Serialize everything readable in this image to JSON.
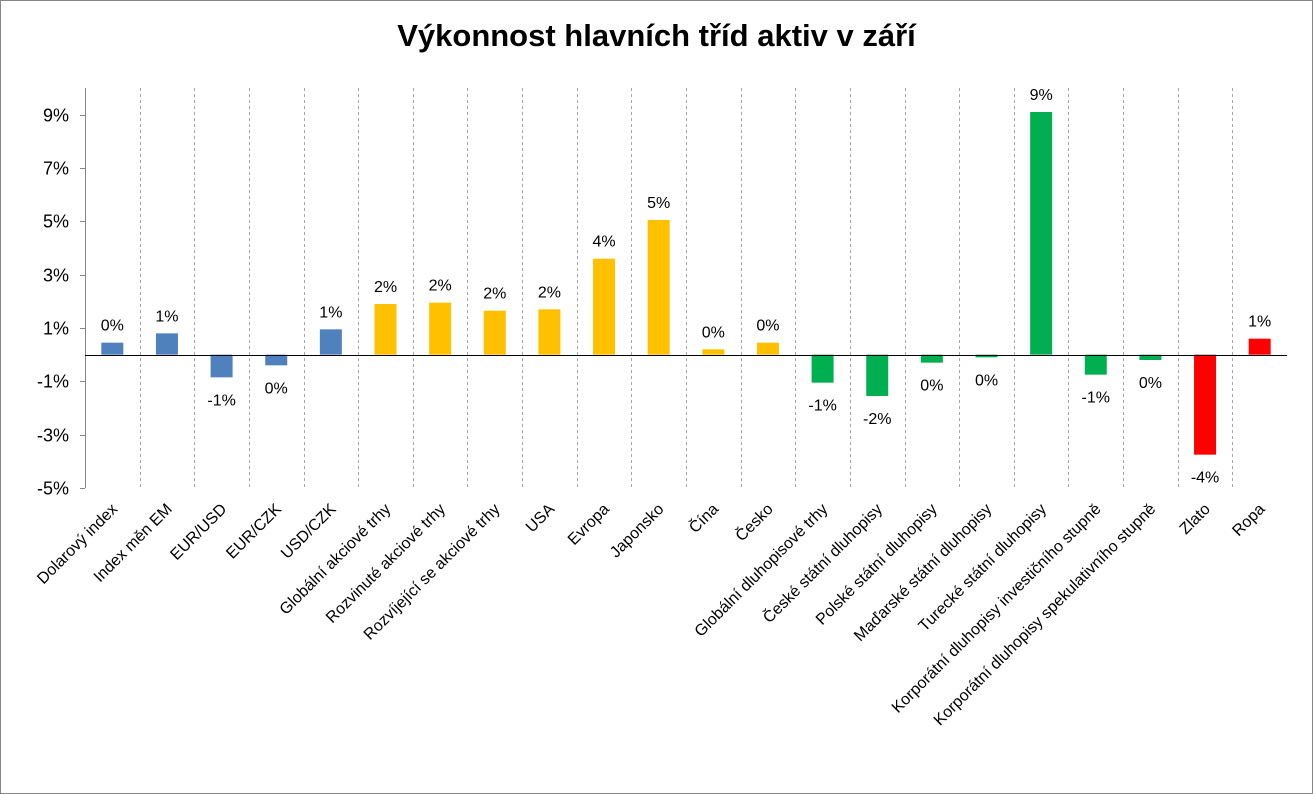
{
  "chart_data": {
    "type": "bar",
    "title": "Výkonnost hlavních tříd aktiv v září",
    "xlabel": "",
    "ylabel": "",
    "ylim": [
      -5,
      10
    ],
    "y_ticks": [
      "-5%",
      "-3%",
      "-1%",
      "1%",
      "3%",
      "5%",
      "7%",
      "9%"
    ],
    "y_tick_values": [
      -5,
      -3,
      -1,
      1,
      3,
      5,
      7,
      9
    ],
    "grid": "vertical dashed between categories",
    "categories": [
      "Dolarový index",
      "Index měn EM",
      "EUR/USD",
      "EUR/CZK",
      "USD/CZK",
      "Globální akciové trhy",
      "Rozvinuté akciové trhy",
      "Rozvíjející se akciové trhy",
      "USA",
      "Evropa",
      "Japonsko",
      "Čína",
      "Česko",
      "Globální dluhopisové trhy",
      "České státní dluhopisy",
      "Polské státní dluhopisy",
      "Maďarské státní dluhopisy",
      "Turecké státní dluhopisy",
      "Korporátní dluhopisy investičního stupně",
      "Korporátní dluhopisy spekulativního stupně",
      "Zlato",
      "Ropa"
    ],
    "values": [
      0.45,
      0.8,
      -0.85,
      -0.4,
      0.95,
      1.9,
      1.95,
      1.65,
      1.7,
      3.6,
      5.05,
      0.2,
      0.45,
      -1.05,
      -1.55,
      -0.3,
      -0.1,
      9.1,
      -0.75,
      -0.2,
      -3.75,
      0.6
    ],
    "data_labels": [
      "0%",
      "1%",
      "-1%",
      "0%",
      "1%",
      "2%",
      "2%",
      "2%",
      "2%",
      "4%",
      "5%",
      "0%",
      "0%",
      "-1%",
      "-2%",
      "0%",
      "0%",
      "9%",
      "-1%",
      "0%",
      "-4%",
      "1%"
    ],
    "colors": [
      "#4f81bd",
      "#4f81bd",
      "#4f81bd",
      "#4f81bd",
      "#4f81bd",
      "#ffc000",
      "#ffc000",
      "#ffc000",
      "#ffc000",
      "#ffc000",
      "#ffc000",
      "#ffc000",
      "#ffc000",
      "#00b050",
      "#00b050",
      "#00b050",
      "#00b050",
      "#00b050",
      "#00b050",
      "#00b050",
      "#ff0000",
      "#ff0000"
    ]
  }
}
